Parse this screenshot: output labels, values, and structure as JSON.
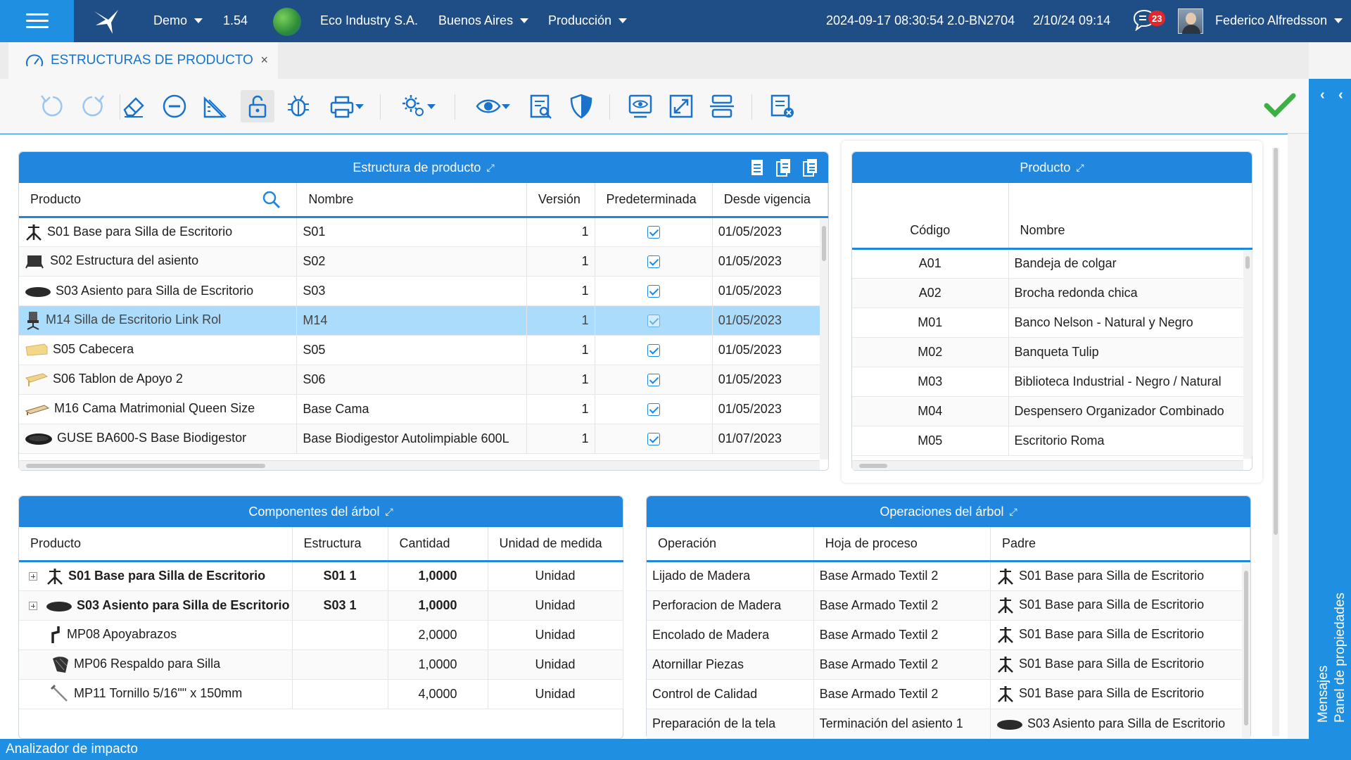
{
  "topbar": {
    "env": "Demo",
    "version": "1.54",
    "company": "Eco Industry S.A.",
    "city": "Buenos Aires",
    "module": "Producción",
    "build": "2024-09-17 08:30:54 2.0-BN2704",
    "session_date": "2/10/24 09:14",
    "notif_count": "23",
    "user": "Federico Alfredsson"
  },
  "tab": {
    "title": "ESTRUCTURAS DE PRODUCTO",
    "close": "×"
  },
  "toolbar": {
    "icons": [
      "undo-icon",
      "redo-icon",
      "eraser-icon",
      "remove-icon",
      "ruler-icon",
      "unlock-icon",
      "bug-icon",
      "print-icon",
      "settings-icon",
      "view-icon",
      "report-icon",
      "shield-icon",
      "monitor-icon",
      "expand-icon",
      "split-icon",
      "list-cancel-icon"
    ],
    "ok_color": "#3cb043"
  },
  "estructura": {
    "title": "Estructura de producto",
    "columns": [
      "Producto",
      "Nombre",
      "Versión",
      "Predeterminada",
      "Desde vigencia"
    ],
    "rows": [
      {
        "producto": "S01 Base para Silla de Escritorio",
        "nombre": "S01",
        "version": "1",
        "desde": "01/05/2023",
        "icon": "chair-base"
      },
      {
        "producto": "S02 Estructura del asiento",
        "nombre": "S02",
        "version": "1",
        "desde": "01/05/2023",
        "icon": "seat-frame"
      },
      {
        "producto": "S03 Asiento para Silla de Escritorio",
        "nombre": "S03",
        "version": "1",
        "desde": "01/05/2023",
        "icon": "seat"
      },
      {
        "producto": "M14 Silla de Escritorio Link Rol",
        "nombre": "M14",
        "version": "1",
        "desde": "01/05/2023",
        "icon": "office-chair"
      },
      {
        "producto": "S05 Cabecera",
        "nombre": "S05",
        "version": "1",
        "desde": "01/05/2023",
        "icon": "headboard"
      },
      {
        "producto": "S06 Tablon de Apoyo 2",
        "nombre": "S06",
        "version": "1",
        "desde": "01/05/2023",
        "icon": "plank"
      },
      {
        "producto": "M16 Cama Matrimonial Queen Size",
        "nombre": "Base Cama",
        "version": "1",
        "desde": "01/05/2023",
        "icon": "bed"
      },
      {
        "producto": "GUSE BA600-S Base Biodigestor",
        "nombre": "Base Biodigestor Autolimpiable 600L",
        "version": "1",
        "desde": "01/07/2023",
        "icon": "disc"
      }
    ]
  },
  "producto": {
    "title": "Producto",
    "columns": [
      "Código",
      "Nombre"
    ],
    "rows": [
      {
        "codigo": "A01",
        "nombre": "Bandeja de colgar"
      },
      {
        "codigo": "A02",
        "nombre": "Brocha redonda chica"
      },
      {
        "codigo": "M01",
        "nombre": "Banco Nelson - Natural y Negro"
      },
      {
        "codigo": "M02",
        "nombre": "Banqueta Tulip"
      },
      {
        "codigo": "M03",
        "nombre": "Biblioteca Industrial - Negro / Natural"
      },
      {
        "codigo": "M04",
        "nombre": "Despensero Organizador Combinado"
      },
      {
        "codigo": "M05",
        "nombre": "Escritorio Roma"
      }
    ]
  },
  "componentes": {
    "title": "Componentes del árbol",
    "columns": [
      "Producto",
      "Estructura",
      "Cantidad",
      "Unidad de medida"
    ],
    "rows": [
      {
        "producto": "S01 Base para Silla de Escritorio",
        "estructura": "S01 1",
        "cantidad": "1,0000",
        "unidad": "Unidad",
        "bold": true,
        "expand": true,
        "icon": "chair-base"
      },
      {
        "producto": "S03 Asiento para Silla de Escritorio",
        "estructura": "S03 1",
        "cantidad": "1,0000",
        "unidad": "Unidad",
        "bold": true,
        "expand": true,
        "icon": "seat"
      },
      {
        "producto": "MP08 Apoyabrazos",
        "estructura": "",
        "cantidad": "2,0000",
        "unidad": "Unidad",
        "bold": false,
        "expand": false,
        "icon": "armrest"
      },
      {
        "producto": "MP06 Respaldo para Silla",
        "estructura": "",
        "cantidad": "1,0000",
        "unidad": "Unidad",
        "bold": false,
        "expand": false,
        "icon": "backrest"
      },
      {
        "producto": "MP11 Tornillo 5/16\"\" x 150mm",
        "estructura": "",
        "cantidad": "4,0000",
        "unidad": "Unidad",
        "bold": false,
        "expand": false,
        "icon": "screw"
      }
    ]
  },
  "operaciones": {
    "title": "Operaciones del árbol",
    "columns": [
      "Operación",
      "Hoja de proceso",
      "Padre"
    ],
    "rows": [
      {
        "operacion": "Lijado de Madera",
        "hoja": "Base Armado Textil 2",
        "padre": "S01 Base para Silla de Escritorio",
        "icon": "chair-base"
      },
      {
        "operacion": "Perforacion de Madera",
        "hoja": "Base Armado Textil 2",
        "padre": "S01 Base para Silla de Escritorio",
        "icon": "chair-base"
      },
      {
        "operacion": "Encolado de Madera",
        "hoja": "Base Armado Textil 2",
        "padre": "S01 Base para Silla de Escritorio",
        "icon": "chair-base"
      },
      {
        "operacion": "Atornillar Piezas",
        "hoja": "Base Armado Textil 2",
        "padre": "S01 Base para Silla de Escritorio",
        "icon": "chair-base"
      },
      {
        "operacion": "Control de Calidad",
        "hoja": "Base Armado Textil 2",
        "padre": "S01 Base para Silla de Escritorio",
        "icon": "chair-base"
      },
      {
        "operacion": "Preparación de la tela",
        "hoja": "Terminación del asiento 1",
        "padre": "S03 Asiento para Silla de Escritorio",
        "icon": "seat"
      }
    ]
  },
  "sidepanel": {
    "panel_label": "Panel de propiedades",
    "msg_label": "Mensajes"
  },
  "statusbar": {
    "label": "Analizador de impacto"
  }
}
